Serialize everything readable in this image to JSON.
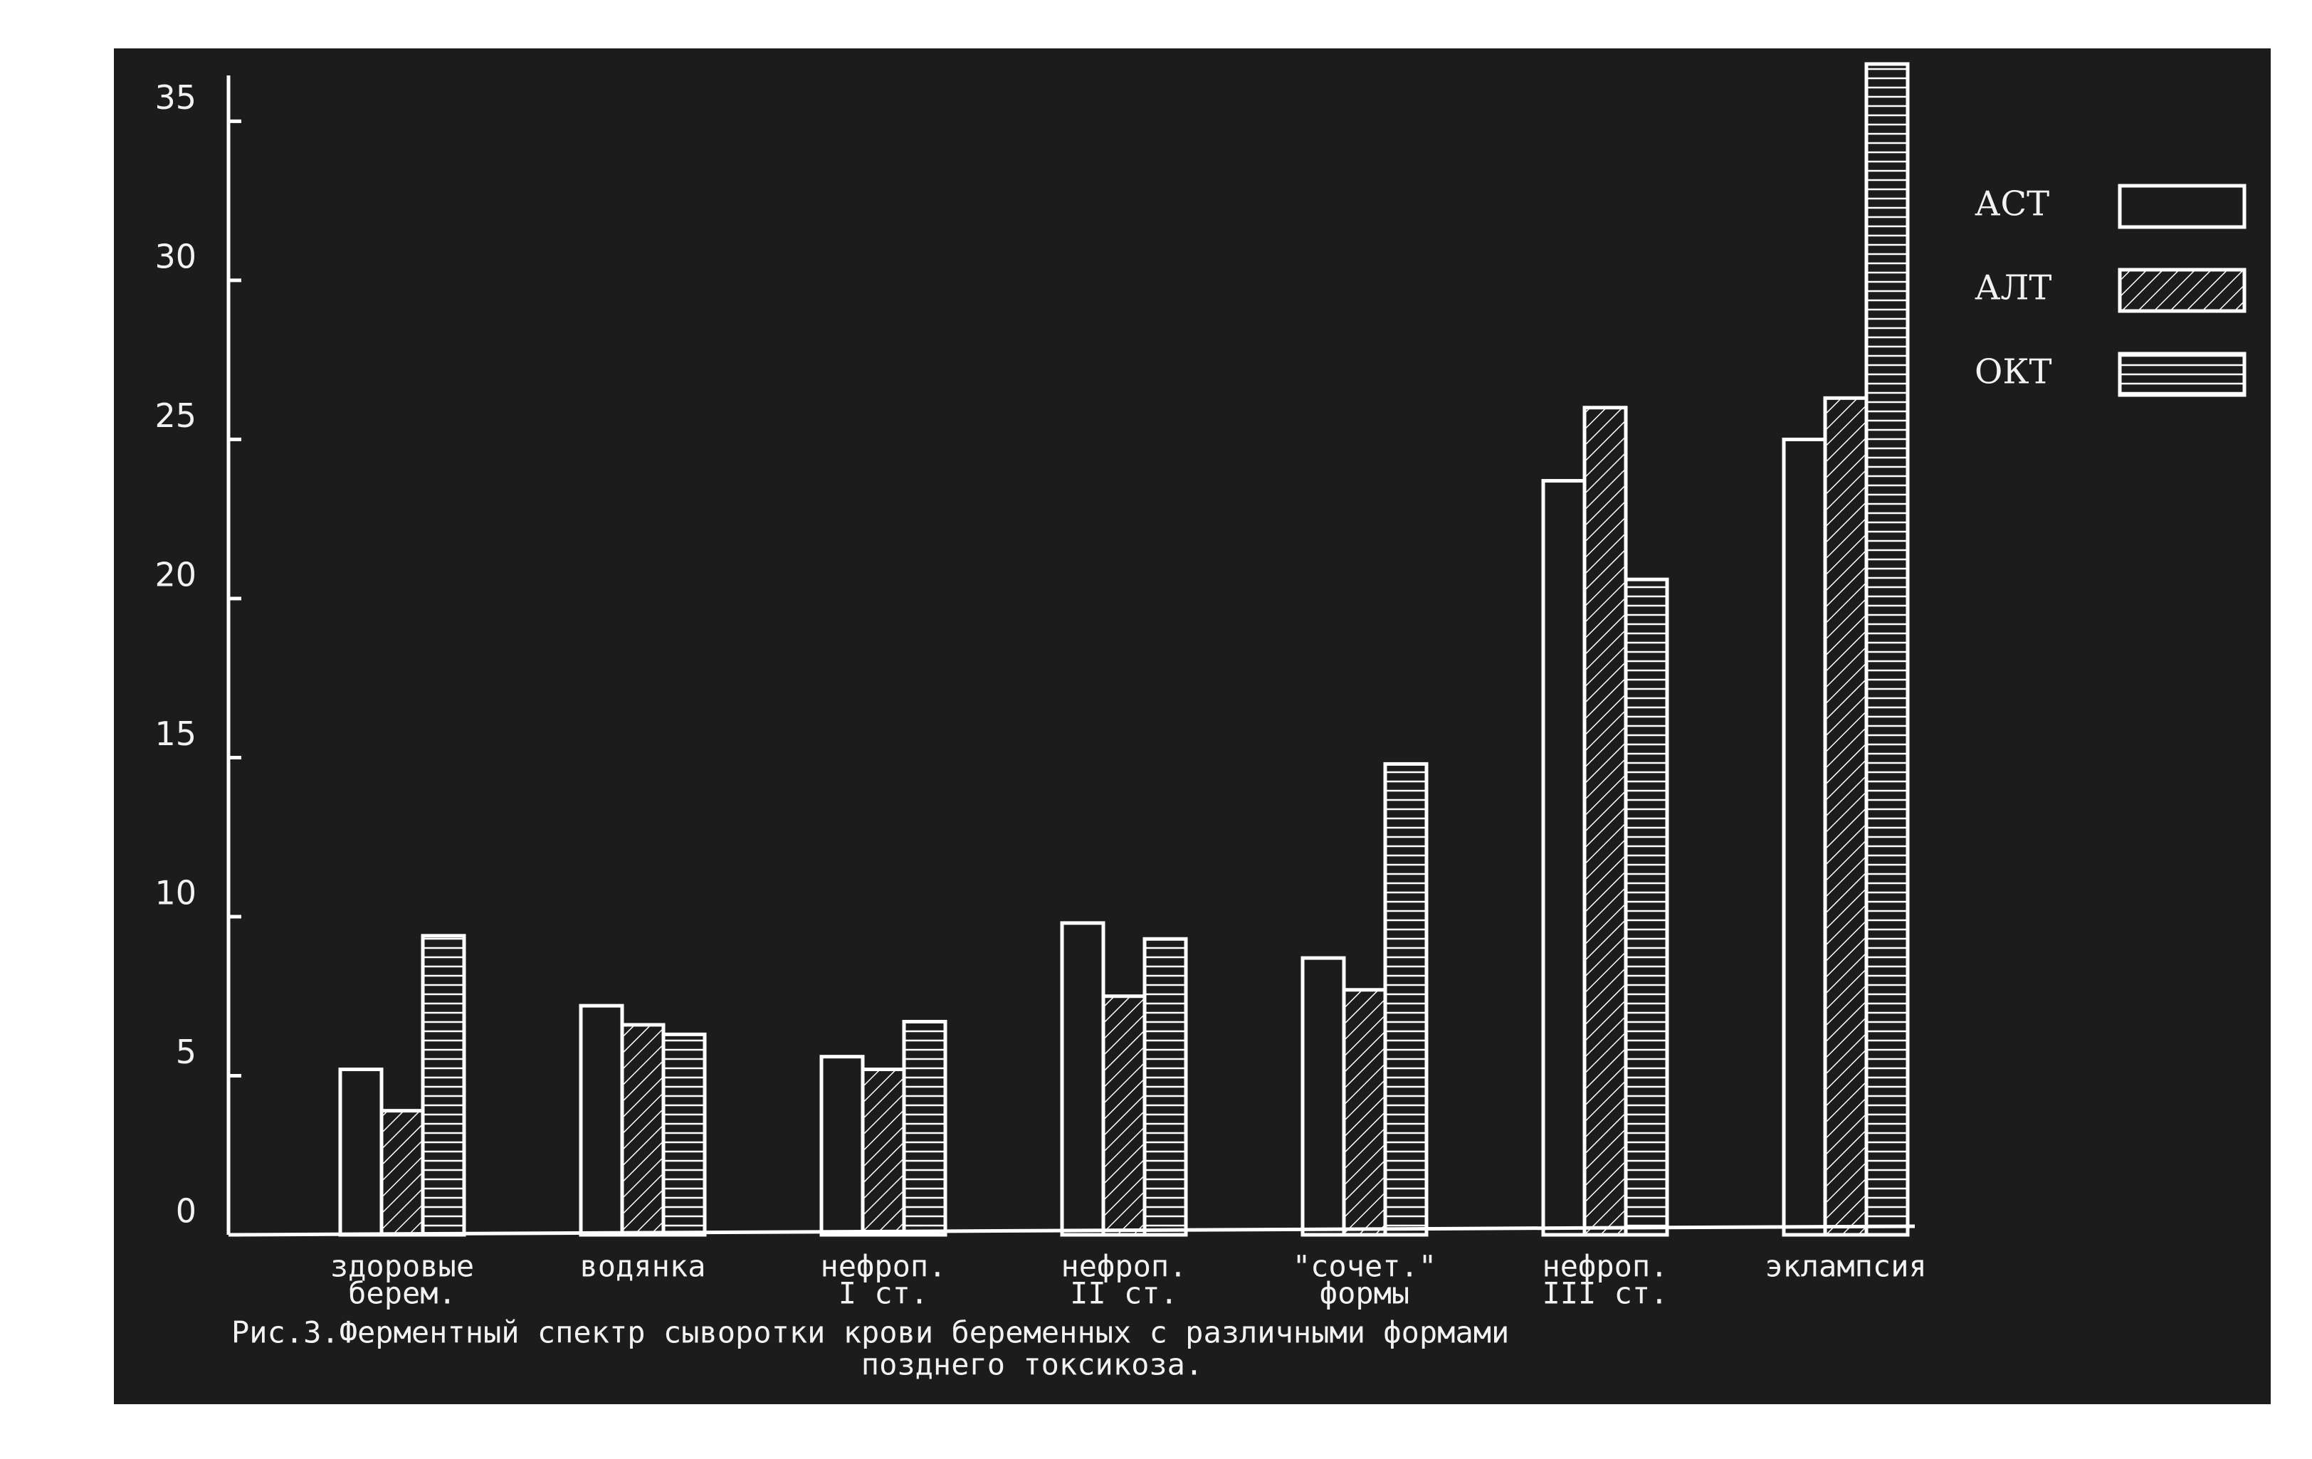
{
  "chart_data": {
    "type": "bar",
    "categories": [
      [
        "здоровые",
        "берем."
      ],
      [
        "водянка"
      ],
      [
        "нефроп.",
        "I ст."
      ],
      [
        "нефроп.",
        "II ст."
      ],
      [
        "\"сочет.\"",
        "формы"
      ],
      [
        "нефроп.",
        "III ст."
      ],
      [
        "эклампсия"
      ]
    ],
    "series": [
      {
        "name": "АСТ",
        "color": "#ffffff",
        "pattern": "none",
        "values": [
          5.2,
          7.2,
          5.6,
          9.8,
          8.7,
          23.7,
          25.0
        ]
      },
      {
        "name": "АЛТ",
        "color": "#ffffff",
        "pattern": "diagonal",
        "values": [
          3.9,
          6.6,
          5.2,
          7.5,
          7.7,
          26.0,
          26.3
        ]
      },
      {
        "name": "ОКТ",
        "color": "#ffffff",
        "pattern": "horizontal",
        "values": [
          9.4,
          6.3,
          6.7,
          9.3,
          14.8,
          20.6,
          36.8
        ]
      }
    ],
    "ylim": [
      0,
      37
    ],
    "yticks": [
      0,
      5,
      10,
      15,
      20,
      25,
      30,
      35
    ],
    "caption": [
      "Рис.3.Ферментный спектр сыворотки крови беременных с различными формами",
      "позднего токсикоза."
    ]
  }
}
